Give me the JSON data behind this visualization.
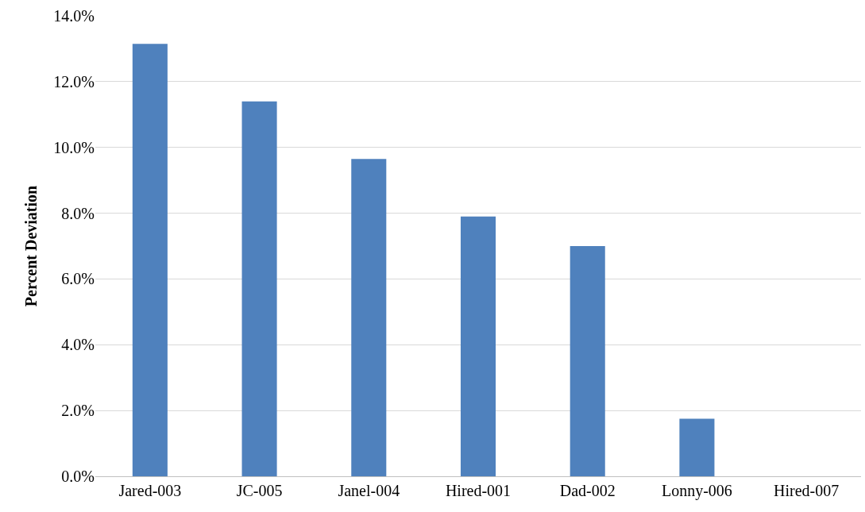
{
  "chart_data": {
    "type": "bar",
    "ylabel": "Percent Deviation",
    "categories": [
      "Jared-003",
      "JC-005",
      "Janel-004",
      "Hired-001",
      "Dad-002",
      "Lonny-006",
      "Hired-007"
    ],
    "values": [
      13.15,
      11.4,
      9.65,
      7.9,
      7.0,
      1.75,
      0
    ],
    "color": "#4f81bd",
    "ylim": [
      0,
      14
    ],
    "yticks": [
      {
        "value": 0,
        "label": "0.0%"
      },
      {
        "value": 2,
        "label": "2.0%"
      },
      {
        "value": 4,
        "label": "4.0%"
      },
      {
        "value": 6,
        "label": "6.0%"
      },
      {
        "value": 8,
        "label": "8.0%"
      },
      {
        "value": 10,
        "label": "10.0%"
      },
      {
        "value": 12,
        "label": "12.0%"
      },
      {
        "value": 14,
        "label": "14.0%"
      }
    ],
    "grid": "y"
  }
}
